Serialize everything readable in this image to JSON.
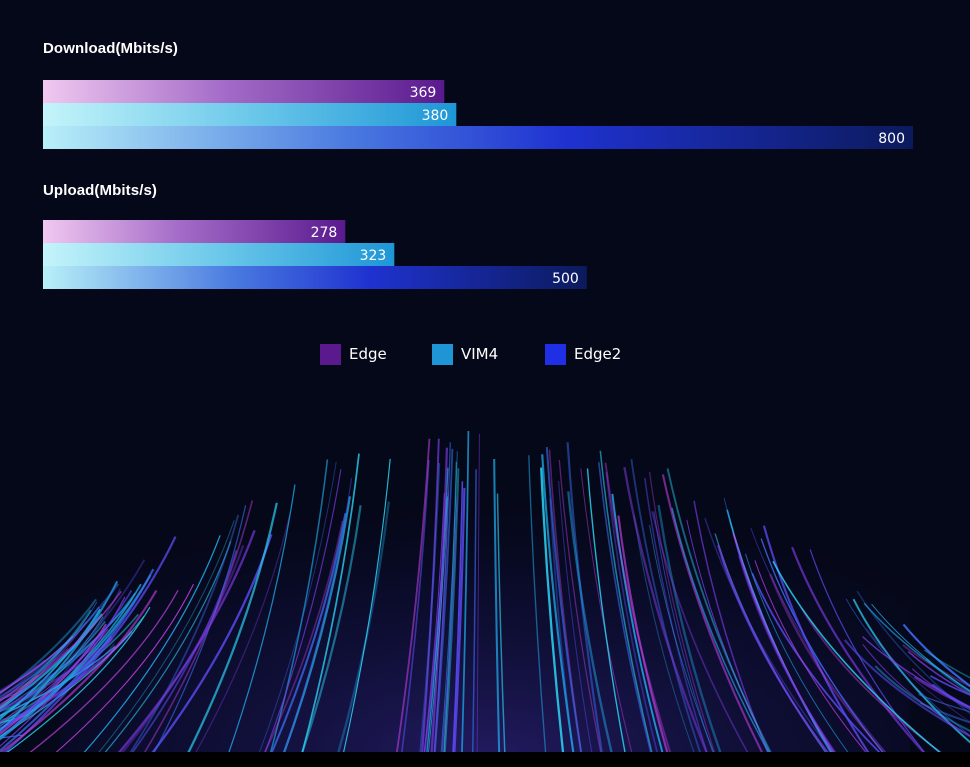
{
  "chart_data": [
    {
      "type": "bar",
      "title": "Download(Mbits/s)",
      "orientation": "horizontal",
      "series": [
        {
          "name": "Edge",
          "values": [
            369
          ]
        },
        {
          "name": "VIM4",
          "values": [
            380
          ]
        },
        {
          "name": "Edge2",
          "values": [
            800
          ]
        }
      ],
      "xlim": [
        0,
        800
      ],
      "grid": false
    },
    {
      "type": "bar",
      "title": "Upload(Mbits/s)",
      "orientation": "horizontal",
      "series": [
        {
          "name": "Edge",
          "values": [
            278
          ]
        },
        {
          "name": "VIM4",
          "values": [
            323
          ]
        },
        {
          "name": "Edge2",
          "values": [
            500
          ]
        }
      ],
      "xlim": [
        0,
        800
      ],
      "grid": false
    }
  ],
  "legend": {
    "placement": "bottom-center",
    "items": [
      {
        "label": "Edge",
        "color": "#5a1a8e"
      },
      {
        "label": "VIM4",
        "color": "#1e96d6"
      },
      {
        "label": "Edge2",
        "color": "#1f2fe6"
      }
    ]
  },
  "colors": {
    "background": "#050818",
    "edge": [
      "#f0c8f0",
      "#5a1a8e"
    ],
    "vim4": [
      "#bff2f8",
      "#1e96d6"
    ],
    "edge2": [
      "#b8f0f8",
      "#1f2fe6",
      "#0c1a5c"
    ]
  }
}
